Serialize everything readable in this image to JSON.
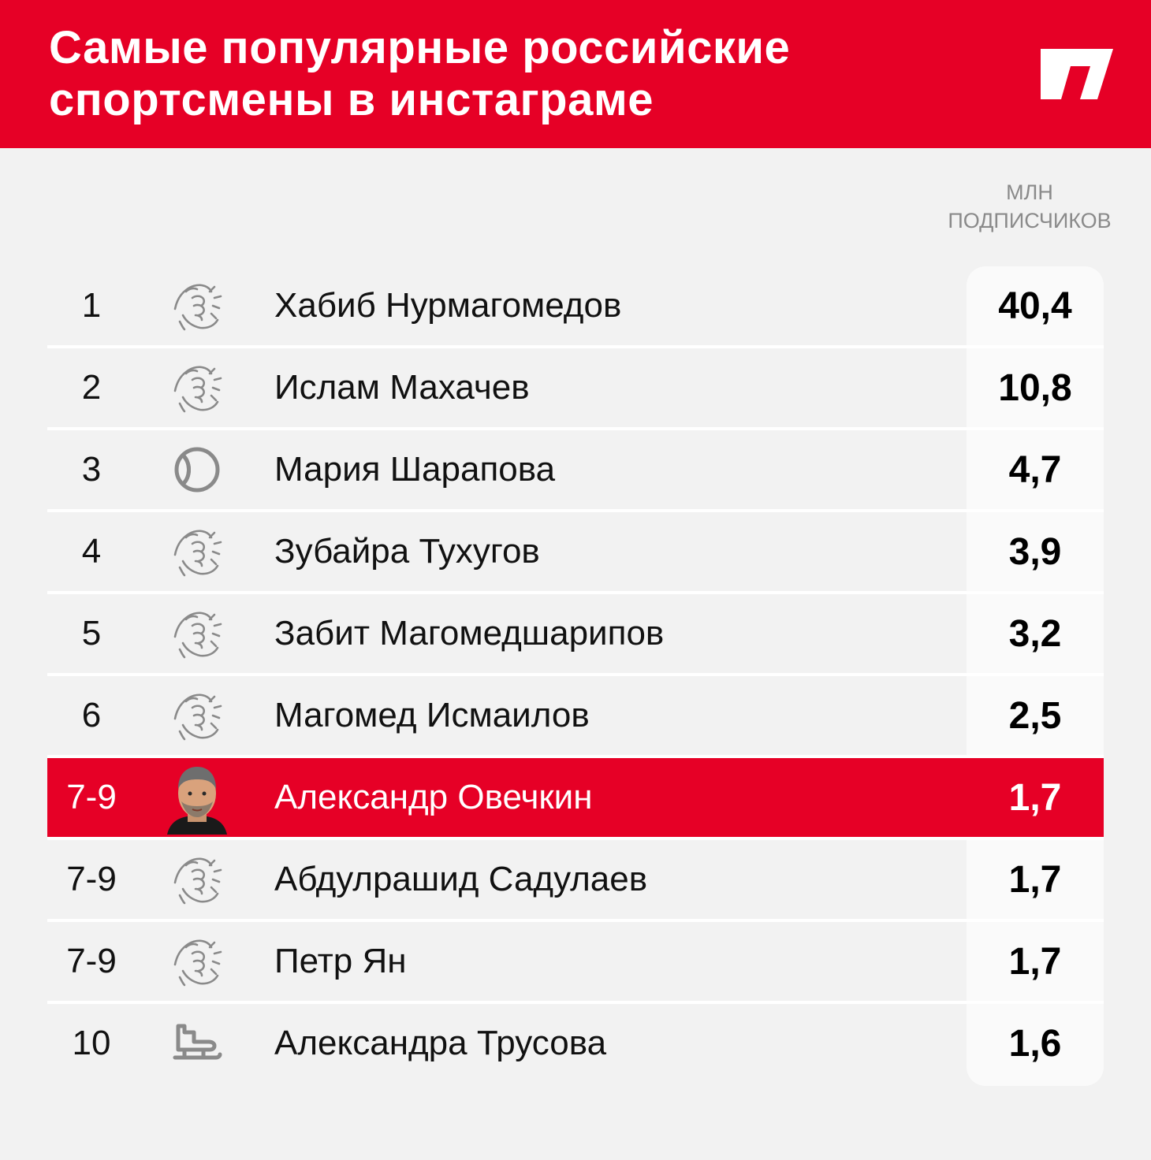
{
  "header": {
    "title_line1": "Самые популярные российские",
    "title_line2": "спортсмены в инстаграме",
    "logo_icon": "brand-logo-icon",
    "accent_color": "#e60026"
  },
  "units": {
    "line1": "МЛН",
    "line2": "ПОДПИСЧИКОВ"
  },
  "chart_data": {
    "type": "table",
    "columns": [
      "rank",
      "sport",
      "name",
      "followers"
    ],
    "rows": [
      {
        "rank": "1",
        "sport": "fist-icon",
        "name": "Хабиб Нурмагомедов",
        "value": "40,4"
      },
      {
        "rank": "2",
        "sport": "fist-icon",
        "name": "Ислам Махачев",
        "value": "10,8"
      },
      {
        "rank": "3",
        "sport": "tennis-ball-icon",
        "name": "Мария Шарапова",
        "value": "4,7"
      },
      {
        "rank": "4",
        "sport": "fist-icon",
        "name": "Зубайра Тухугов",
        "value": "3,9"
      },
      {
        "rank": "5",
        "sport": "fist-icon",
        "name": "Забит Магомедшарипов",
        "value": "3,2"
      },
      {
        "rank": "6",
        "sport": "fist-icon",
        "name": "Магомед Исмаилов",
        "value": "2,5"
      },
      {
        "rank": "7-9",
        "sport": "athlete-photo-icon",
        "name": "Александр Овечкин",
        "value": "1,7",
        "highlight": true
      },
      {
        "rank": "7-9",
        "sport": "fist-icon",
        "name": "Абдулрашид Садулаев",
        "value": "1,7"
      },
      {
        "rank": "7-9",
        "sport": "fist-icon",
        "name": "Петр Ян",
        "value": "1,7"
      },
      {
        "rank": "10",
        "sport": "skate-icon",
        "name": "Александра Трусова",
        "value": "1,6"
      }
    ]
  }
}
